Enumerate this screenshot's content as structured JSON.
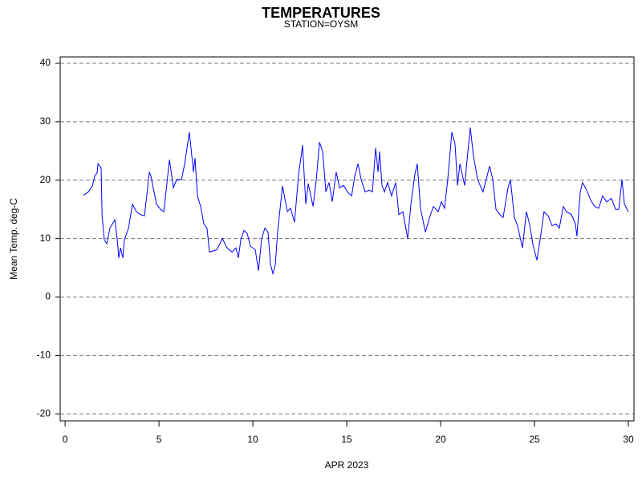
{
  "chart_data": {
    "type": "line",
    "title": "TEMPERATURES",
    "subtitle": "STATION=OYSM",
    "x_label": "APR 2023",
    "y_label": "Mean Temp. deg-C",
    "xlim": [
      -0.26,
      30.3
    ],
    "ylim": [
      -21.2,
      41.1
    ],
    "xticks": [
      0,
      5,
      10,
      15,
      20,
      25,
      30
    ],
    "yticks": [
      -20,
      -10,
      0,
      10,
      20,
      30,
      40
    ],
    "grid": true,
    "series": [
      {
        "name": "Mean Temp.",
        "color": "#0000ff",
        "x": [
          0.98,
          1.24,
          1.45,
          1.58,
          1.71,
          1.75,
          1.92,
          1.97,
          2.09,
          2.22,
          2.39,
          2.65,
          2.78,
          2.86,
          2.95,
          3.08,
          3.16,
          3.38,
          3.59,
          3.8,
          4.02,
          4.23,
          4.49,
          4.57,
          4.87,
          5.09,
          5.26,
          5.56,
          5.77,
          5.94,
          6.2,
          6.37,
          6.62,
          6.84,
          6.92,
          7.05,
          7.22,
          7.39,
          7.56,
          7.69,
          8.08,
          8.38,
          8.63,
          8.89,
          9.1,
          9.23,
          9.36,
          9.53,
          9.7,
          9.87,
          10.13,
          10.3,
          10.47,
          10.64,
          10.81,
          10.94,
          11.07,
          11.2,
          11.32,
          11.58,
          11.84,
          12.01,
          12.22,
          12.44,
          12.65,
          12.82,
          12.95,
          13.21,
          13.38,
          13.55,
          13.72,
          13.89,
          14.06,
          14.23,
          14.44,
          14.62,
          14.83,
          15.04,
          15.26,
          15.43,
          15.6,
          15.77,
          15.98,
          16.2,
          16.37,
          16.54,
          16.67,
          16.75,
          16.88,
          17.01,
          17.18,
          17.39,
          17.61,
          17.78,
          17.99,
          18.25,
          18.42,
          18.63,
          18.76,
          18.93,
          19.19,
          19.44,
          19.62,
          19.87,
          20.04,
          20.21,
          20.38,
          20.6,
          20.77,
          20.9,
          21.03,
          21.28,
          21.58,
          21.75,
          21.97,
          22.26,
          22.61,
          22.78,
          22.95,
          23.16,
          23.33,
          23.59,
          23.72,
          23.93,
          24.1,
          24.36,
          24.57,
          24.74,
          24.91,
          25.13,
          25.3,
          25.51,
          25.73,
          25.94,
          26.15,
          26.32,
          26.54,
          26.71,
          26.97,
          27.18,
          27.26,
          27.44,
          27.56,
          27.78,
          27.99,
          28.21,
          28.42,
          28.63,
          28.85,
          29.1,
          29.32,
          29.49,
          29.66,
          29.79,
          30.0
        ],
        "values": [
          17.4,
          18.0,
          19.0,
          20.7,
          21.3,
          22.8,
          22.1,
          14.0,
          9.8,
          9.1,
          11.8,
          13.2,
          9.8,
          6.7,
          8.4,
          6.7,
          9.8,
          11.8,
          15.9,
          14.6,
          14.1,
          13.9,
          21.4,
          20.7,
          15.9,
          15.0,
          14.6,
          23.5,
          18.7,
          20.1,
          20.1,
          22.8,
          28.2,
          21.4,
          23.8,
          17.3,
          15.5,
          12.5,
          11.8,
          7.7,
          8.1,
          10.0,
          8.4,
          7.7,
          8.4,
          6.7,
          9.8,
          11.4,
          10.9,
          8.7,
          8.1,
          4.5,
          10.0,
          11.8,
          11.1,
          5.6,
          4.0,
          5.6,
          11.1,
          19.0,
          14.6,
          15.2,
          12.8,
          21.0,
          26.0,
          15.9,
          19.4,
          15.5,
          20.1,
          26.5,
          24.9,
          18.0,
          19.6,
          16.3,
          21.4,
          18.7,
          19.1,
          18.0,
          17.3,
          20.7,
          22.8,
          20.1,
          18.0,
          18.3,
          18.0,
          25.5,
          21.4,
          24.9,
          19.1,
          18.0,
          19.6,
          17.3,
          19.6,
          14.1,
          14.6,
          10.0,
          15.9,
          21.0,
          22.8,
          15.2,
          11.1,
          13.9,
          15.5,
          14.6,
          16.3,
          15.2,
          20.1,
          28.2,
          26.2,
          19.1,
          22.8,
          19.1,
          29.0,
          24.2,
          20.1,
          18.0,
          22.4,
          20.1,
          15.0,
          14.1,
          13.6,
          18.7,
          20.1,
          13.6,
          12.2,
          8.4,
          14.6,
          12.5,
          9.1,
          6.3,
          9.8,
          14.6,
          13.9,
          12.2,
          12.5,
          11.8,
          15.5,
          14.6,
          14.1,
          12.5,
          10.4,
          18.0,
          19.6,
          18.3,
          16.6,
          15.5,
          15.2,
          17.3,
          16.3,
          16.9,
          15.0,
          15.0,
          20.1,
          15.9,
          14.6
        ]
      }
    ]
  }
}
